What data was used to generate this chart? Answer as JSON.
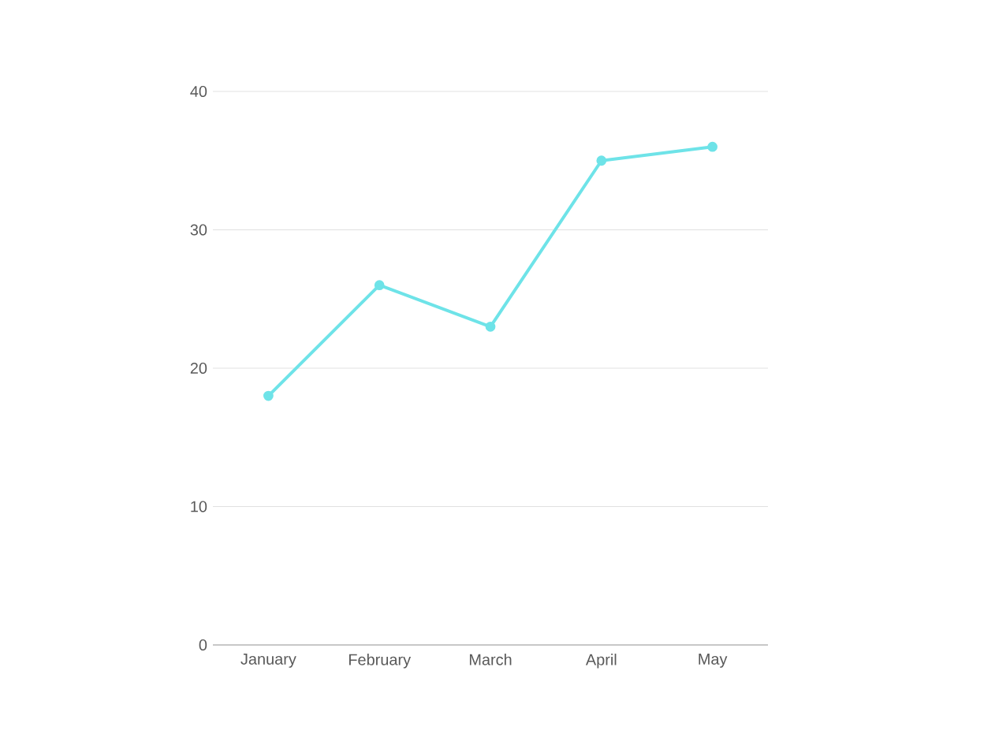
{
  "chart_data": {
    "type": "line",
    "categories": [
      "January",
      "February",
      "March",
      "April",
      "May"
    ],
    "values": [
      18,
      26,
      23,
      35,
      36
    ],
    "color": "#6ee3e8",
    "ylim": [
      0,
      40
    ],
    "yticks": [
      0,
      10,
      20,
      30,
      40
    ],
    "grid": "y",
    "marker": "circle",
    "line_style": "solid"
  }
}
